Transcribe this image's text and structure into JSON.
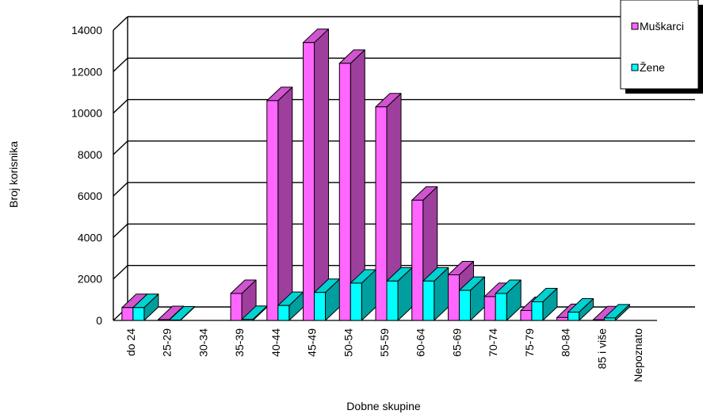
{
  "chart_data": {
    "type": "bar",
    "view": "3d-clustered",
    "categories": [
      "do 24",
      "25-29",
      "30-34",
      "35-39",
      "40-44",
      "45-49",
      "50-54",
      "55-59",
      "60-64",
      "65-69",
      "70-74",
      "75-79",
      "80-84",
      "85 i više",
      "Nepoznato"
    ],
    "series": [
      {
        "name": "Muškarci",
        "color": "#ff66ff",
        "values": [
          620,
          40,
          0,
          1300,
          10600,
          13400,
          12400,
          10300,
          5800,
          2200,
          1150,
          480,
          140,
          30,
          0
        ]
      },
      {
        "name": "Žene",
        "color": "#00ffff",
        "values": [
          620,
          20,
          0,
          50,
          720,
          1350,
          1800,
          1900,
          1900,
          1450,
          1300,
          900,
          400,
          120,
          0
        ]
      }
    ],
    "xlabel": "Dobne skupine",
    "ylabel": "Broj korisnika",
    "ylim": [
      0,
      14000
    ],
    "yticks": [
      0,
      2000,
      4000,
      6000,
      8000,
      10000,
      12000,
      14000
    ],
    "grid": true,
    "legend_position": "top-right"
  }
}
